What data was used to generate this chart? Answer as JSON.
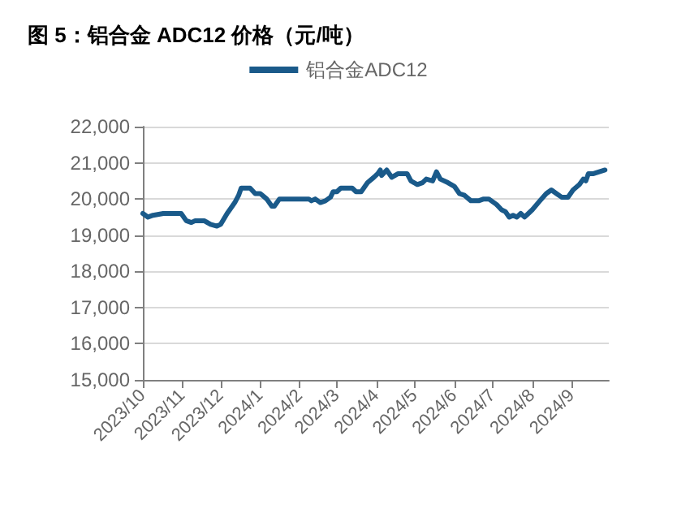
{
  "chart_data": {
    "type": "line",
    "title": "图 5：铝合金 ADC12 价格（元/吨）",
    "x": [
      "2023-10-01",
      "2023-10-05",
      "2023-10-09",
      "2023-10-17",
      "2023-10-31",
      "2023-11-04",
      "2023-11-08",
      "2023-11-11",
      "2023-11-18",
      "2023-11-23",
      "2023-11-28",
      "2023-12-01",
      "2023-12-06",
      "2023-12-12",
      "2023-12-15",
      "2023-12-17",
      "2023-12-24",
      "2023-12-28",
      "2024-01-01",
      "2024-01-06",
      "2024-01-10",
      "2024-01-12",
      "2024-01-16",
      "2024-02-08",
      "2024-02-10",
      "2024-02-13",
      "2024-02-17",
      "2024-02-21",
      "2024-02-25",
      "2024-02-27",
      "2024-03-01",
      "2024-03-04",
      "2024-03-13",
      "2024-03-16",
      "2024-03-20",
      "2024-03-25",
      "2024-03-30",
      "2024-04-02",
      "2024-04-04",
      "2024-04-05",
      "2024-04-09",
      "2024-04-13",
      "2024-04-18",
      "2024-04-25",
      "2024-04-28",
      "2024-05-03",
      "2024-05-07",
      "2024-05-10",
      "2024-05-15",
      "2024-05-18",
      "2024-05-21",
      "2024-05-27",
      "2024-06-01",
      "2024-06-05",
      "2024-06-09",
      "2024-06-14",
      "2024-06-20",
      "2024-06-24",
      "2024-06-28",
      "2024-07-04",
      "2024-07-08",
      "2024-07-11",
      "2024-07-14",
      "2024-07-17",
      "2024-07-20",
      "2024-07-23",
      "2024-07-26",
      "2024-07-29",
      "2024-08-01",
      "2024-08-07",
      "2024-08-12",
      "2024-08-16",
      "2024-08-20",
      "2024-08-24",
      "2024-08-29",
      "2024-09-02",
      "2024-09-07",
      "2024-09-10",
      "2024-09-12",
      "2024-09-14",
      "2024-09-18",
      "2024-09-27"
    ],
    "series": [
      {
        "name": "铝合金ADC12",
        "color": "#1a5a8a",
        "values": [
          19600,
          19500,
          19550,
          19600,
          19600,
          19400,
          19350,
          19400,
          19400,
          19300,
          19250,
          19300,
          19600,
          19900,
          20100,
          20300,
          20300,
          20150,
          20150,
          20000,
          19800,
          19800,
          20000,
          20000,
          19950,
          20000,
          19900,
          19950,
          20050,
          20200,
          20200,
          20300,
          20300,
          20200,
          20200,
          20450,
          20600,
          20700,
          20800,
          20650,
          20800,
          20600,
          20700,
          20700,
          20500,
          20400,
          20450,
          20550,
          20500,
          20750,
          20550,
          20450,
          20350,
          20150,
          20100,
          19950,
          19950,
          20000,
          20000,
          19850,
          19700,
          19650,
          19500,
          19550,
          19500,
          19600,
          19500,
          19600,
          19700,
          19950,
          20150,
          20250,
          20150,
          20050,
          20050,
          20250,
          20400,
          20550,
          20500,
          20700,
          20700,
          20800
        ]
      }
    ],
    "xlim": [
      "2023-10-01",
      "2024-09-30"
    ],
    "xticks": [
      {
        "value": "2023-10-01",
        "label": "2023/10"
      },
      {
        "value": "2023-11-01",
        "label": "2023/11"
      },
      {
        "value": "2023-12-01",
        "label": "2023/12"
      },
      {
        "value": "2024-01-01",
        "label": "2024/1"
      },
      {
        "value": "2024-02-01",
        "label": "2024/2"
      },
      {
        "value": "2024-03-01",
        "label": "2024/3"
      },
      {
        "value": "2024-04-01",
        "label": "2024/4"
      },
      {
        "value": "2024-05-01",
        "label": "2024/5"
      },
      {
        "value": "2024-06-01",
        "label": "2024/6"
      },
      {
        "value": "2024-07-01",
        "label": "2024/7"
      },
      {
        "value": "2024-08-01",
        "label": "2024/8"
      },
      {
        "value": "2024-09-01",
        "label": "2024/9"
      }
    ],
    "ylim": [
      15000,
      22000
    ],
    "yticks": [
      {
        "value": 15000,
        "label": "15,000"
      },
      {
        "value": 16000,
        "label": "16,000"
      },
      {
        "value": 17000,
        "label": "17,000"
      },
      {
        "value": 18000,
        "label": "18,000"
      },
      {
        "value": 19000,
        "label": "19,000"
      },
      {
        "value": 20000,
        "label": "20,000"
      },
      {
        "value": 21000,
        "label": "21,000"
      },
      {
        "value": 22000,
        "label": "22,000"
      }
    ],
    "grid": "y",
    "legend": "top",
    "marker": "none",
    "line_style": "solid"
  }
}
